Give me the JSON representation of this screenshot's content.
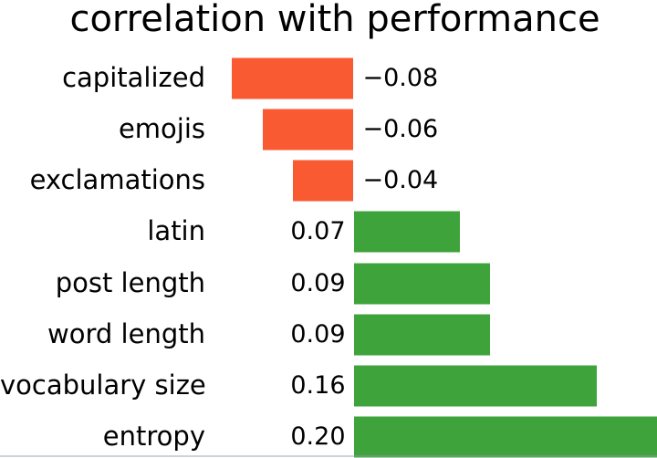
{
  "chart_data": {
    "type": "bar",
    "orientation": "horizontal",
    "title": "correlation with performance",
    "categories": [
      "capitalized",
      "emojis",
      "exclamations",
      "latin",
      "post length",
      "word length",
      "vocabulary size",
      "entropy"
    ],
    "values": [
      -0.08,
      -0.06,
      -0.04,
      0.07,
      0.09,
      0.09,
      0.16,
      0.2
    ],
    "value_labels": [
      "−0.08",
      "−0.06",
      "−0.04",
      "0.07",
      "0.09",
      "0.09",
      "0.16",
      "0.20"
    ],
    "xlabel": "",
    "ylabel": "",
    "xlim": [
      -0.233,
      0.2
    ],
    "grid": false,
    "legend": null,
    "bar_label_position": "outside-at-zero-line",
    "colors": {
      "negative_bar": "#fa5a32",
      "positive_bar": "#3fa33c",
      "text": "#000000",
      "background": "#ffffff",
      "bottom_divider": "#9aa3b4"
    }
  }
}
